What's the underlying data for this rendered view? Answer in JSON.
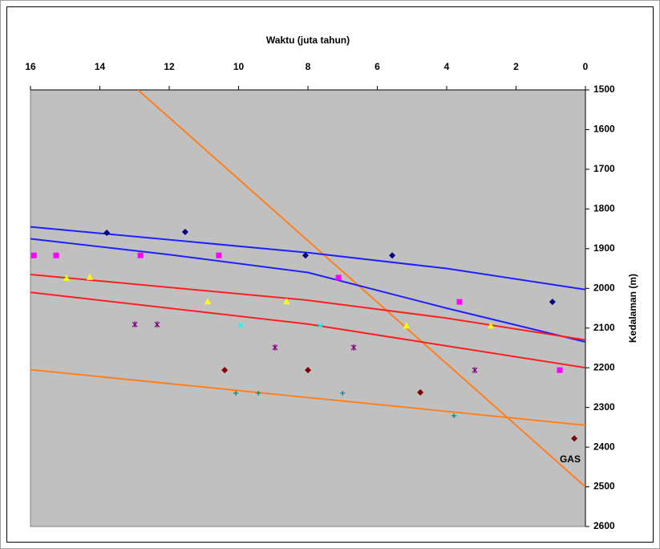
{
  "chart_data": {
    "type": "scatter",
    "x_label": "Waktu (juta tahun)",
    "y_label": "Kedalaman (m)",
    "xlim": [
      16,
      0
    ],
    "xticks": [
      16,
      14,
      12,
      10,
      8,
      6,
      4,
      2,
      0
    ],
    "ylim": [
      1500,
      2600
    ],
    "yticks": [
      1500,
      1600,
      1700,
      1800,
      1900,
      2000,
      2100,
      2200,
      2300,
      2400,
      2500,
      2600
    ],
    "x_axis_position": "top",
    "y_axis_position": "right",
    "plot_background": "#c0c0c0",
    "series": [
      {
        "mode": "line",
        "color": "#ff7f1f",
        "x": [
          12.9,
          0
        ],
        "values": [
          1500,
          2500
        ]
      },
      {
        "mode": "line",
        "color": "#ff7f1f",
        "x": [
          16,
          0
        ],
        "values": [
          2205,
          2345
        ]
      },
      {
        "mode": "line",
        "color": "#1f1fff",
        "x": [
          16,
          8,
          4,
          0
        ],
        "values": [
          1845,
          1910,
          1950,
          2003
        ]
      },
      {
        "mode": "line",
        "color": "#1f1fff",
        "x": [
          16,
          12,
          8,
          4,
          0
        ],
        "values": [
          1875,
          1915,
          1960,
          2050,
          2135
        ]
      },
      {
        "mode": "line",
        "color": "#ff1f1f",
        "x": [
          16,
          8,
          4,
          0
        ],
        "values": [
          1965,
          2030,
          2075,
          2130
        ]
      },
      {
        "mode": "line",
        "color": "#ff1f1f",
        "x": [
          16,
          8,
          4,
          0
        ],
        "values": [
          2010,
          2090,
          2145,
          2200
        ]
      },
      {
        "mode": "marker",
        "marker": "diamond",
        "color": "#000080",
        "x": [
          13.8,
          11.54,
          8.07,
          5.57,
          0.95
        ],
        "values": [
          1860,
          1858,
          1917,
          1917,
          2034
        ]
      },
      {
        "mode": "marker",
        "marker": "square",
        "color": "#ff00ff",
        "x": [
          15.9,
          15.26,
          12.83,
          10.57,
          7.12,
          3.63,
          0.74
        ],
        "values": [
          1917,
          1917,
          1917,
          1917,
          1973,
          2034,
          2206
        ]
      },
      {
        "mode": "marker",
        "marker": "triangle",
        "color": "#ffff00",
        "x": [
          14.96,
          14.29,
          10.89,
          8.62,
          5.16,
          2.73
        ],
        "values": [
          1975,
          1973,
          2034,
          2034,
          2095,
          2095
        ]
      },
      {
        "mode": "marker",
        "marker": "cross",
        "color": "#00ffff",
        "x": [
          9.94,
          7.65
        ],
        "values": [
          2093,
          2093
        ]
      },
      {
        "mode": "marker",
        "marker": "star",
        "color": "#800080",
        "x": [
          12.99,
          12.35,
          8.95,
          6.68,
          3.19
        ],
        "values": [
          2091,
          2091,
          2149,
          2149,
          2206
        ]
      },
      {
        "mode": "marker",
        "marker": "diamond",
        "color": "#800000",
        "x": [
          10.4,
          8.0,
          4.76,
          0.32
        ],
        "values": [
          2206,
          2206,
          2262,
          2378
        ]
      },
      {
        "mode": "marker",
        "marker": "plus",
        "color": "#008080",
        "x": [
          10.08,
          9.43,
          7.0,
          3.79
        ],
        "values": [
          2264,
          2264,
          2264,
          2321
        ]
      }
    ],
    "annotations": [
      {
        "text": "GAS",
        "x": 0.44,
        "y": 2432
      }
    ]
  }
}
